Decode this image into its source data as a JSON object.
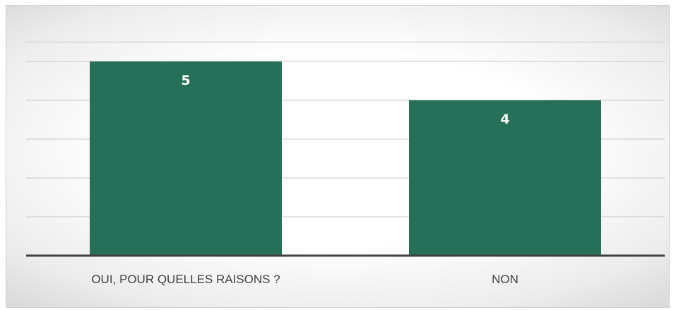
{
  "chart_data": {
    "type": "bar",
    "categories": [
      "OUI, POUR QUELLES RAISONS ?",
      "NON"
    ],
    "values": [
      5,
      4
    ],
    "data_labels": [
      "5",
      "4"
    ],
    "ylim": [
      0,
      5.5
    ],
    "grid": true,
    "legend": "none",
    "bar_color": "#267059",
    "gridline_color": "#c8c8c8",
    "axis_color": "#404040"
  }
}
